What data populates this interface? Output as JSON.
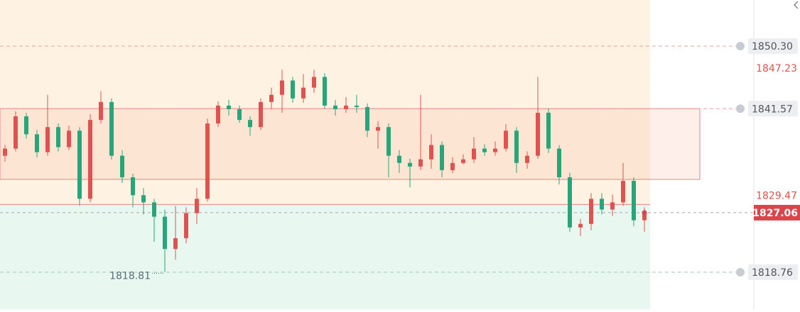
{
  "chart_data": {
    "type": "candlestick",
    "ylim": [
      1813.6,
      1856.73
    ],
    "up_color": "#e0524f",
    "down_color": "#26a67a",
    "zones": {
      "upper_color": "#fef3e2",
      "lower_color": "#e8f7ef",
      "split": 1828.2,
      "box": [
        1841.57,
        1831.7
      ],
      "box_color": "#f08080"
    },
    "series": {
      "open": [
        1835.0,
        1836.0,
        1840.5,
        1838.0,
        1835.5,
        1839.0,
        1836.2,
        1838.5,
        1829.0,
        1840.0,
        1842.5,
        1835.0,
        1832.0,
        1829.5,
        1828.5,
        1826.5,
        1822.0,
        1823.5,
        1827.0,
        1829.0,
        1839.5,
        1842.0,
        1841.5,
        1840.0,
        1839.0,
        1842.5,
        1843.5,
        1845.5,
        1843.0,
        1844.5,
        1846.0,
        1842.0,
        1841.5,
        1842.0,
        1841.8,
        1838.5,
        1839.0,
        1835.0,
        1834.0,
        1833.5,
        1834.5,
        1836.5,
        1833.0,
        1834.0,
        1834.5,
        1836.0,
        1835.5,
        1836.0,
        1838.5,
        1834.0,
        1835.0,
        1841.0,
        1836.0,
        1832.0,
        1825.0,
        1825.5,
        1829.0,
        1827.5,
        1828.5,
        1831.5,
        1826.0
      ],
      "high": [
        1836.5,
        1841.2,
        1841.0,
        1838.6,
        1843.5,
        1839.5,
        1839.2,
        1839.0,
        1840.8,
        1844.0,
        1843.0,
        1835.8,
        1832.5,
        1830.5,
        1829.0,
        1827.5,
        1828.0,
        1827.8,
        1830.5,
        1840.2,
        1842.6,
        1842.8,
        1842.0,
        1840.5,
        1843.0,
        1844.5,
        1847.0,
        1846.0,
        1846.4,
        1847.0,
        1846.5,
        1842.8,
        1843.2,
        1843.5,
        1842.3,
        1839.8,
        1839.5,
        1835.8,
        1834.6,
        1843.5,
        1838.0,
        1837.0,
        1834.8,
        1835.2,
        1837.6,
        1836.6,
        1837.0,
        1839.4,
        1839.0,
        1835.6,
        1846.0,
        1841.6,
        1836.5,
        1832.6,
        1826.2,
        1829.8,
        1829.8,
        1829.6,
        1834.0,
        1832.0,
        1827.8
      ],
      "low": [
        1834.2,
        1835.6,
        1837.4,
        1834.8,
        1835.0,
        1835.6,
        1835.8,
        1828.0,
        1828.5,
        1839.5,
        1834.5,
        1831.2,
        1827.8,
        1826.8,
        1823.0,
        1818.81,
        1820.5,
        1822.8,
        1825.5,
        1828.6,
        1839.0,
        1840.6,
        1839.6,
        1837.8,
        1838.6,
        1841.5,
        1841.0,
        1842.4,
        1842.4,
        1843.8,
        1841.6,
        1840.6,
        1841.0,
        1841.0,
        1837.6,
        1836.0,
        1832.0,
        1832.6,
        1830.6,
        1833.0,
        1833.2,
        1832.0,
        1832.6,
        1833.8,
        1834.0,
        1835.0,
        1835.0,
        1835.6,
        1832.6,
        1833.2,
        1834.6,
        1835.4,
        1831.0,
        1824.4,
        1823.8,
        1824.6,
        1826.8,
        1826.6,
        1828.0,
        1825.2,
        1824.4
      ],
      "close": [
        1836.0,
        1840.5,
        1838.0,
        1835.5,
        1839.0,
        1836.2,
        1838.5,
        1829.0,
        1840.0,
        1842.5,
        1835.0,
        1832.0,
        1829.5,
        1828.5,
        1826.5,
        1822.0,
        1823.5,
        1827.0,
        1829.0,
        1839.5,
        1842.0,
        1841.5,
        1840.0,
        1839.0,
        1842.5,
        1843.5,
        1845.5,
        1843.0,
        1844.5,
        1846.0,
        1842.0,
        1841.5,
        1842.0,
        1841.8,
        1838.5,
        1839.0,
        1835.0,
        1834.0,
        1833.5,
        1834.5,
        1836.5,
        1833.0,
        1834.0,
        1834.5,
        1836.0,
        1835.5,
        1836.0,
        1838.5,
        1834.0,
        1835.0,
        1841.0,
        1836.0,
        1832.0,
        1825.0,
        1825.5,
        1829.0,
        1827.5,
        1828.5,
        1831.5,
        1826.0,
        1827.06
      ]
    },
    "alert_lines": [
      {
        "value": 1850.3,
        "label": "1850.30"
      },
      {
        "value": 1841.57,
        "label": "1841.57"
      },
      {
        "value": 1818.76,
        "label": "1818.76"
      }
    ],
    "markers": [
      {
        "value": 1847.23,
        "label": "1847.23"
      },
      {
        "value": 1829.47,
        "label": "1829.47"
      }
    ],
    "last_price": {
      "value": 1827.06,
      "label": "1827.06",
      "color": "#d9454a"
    }
  }
}
